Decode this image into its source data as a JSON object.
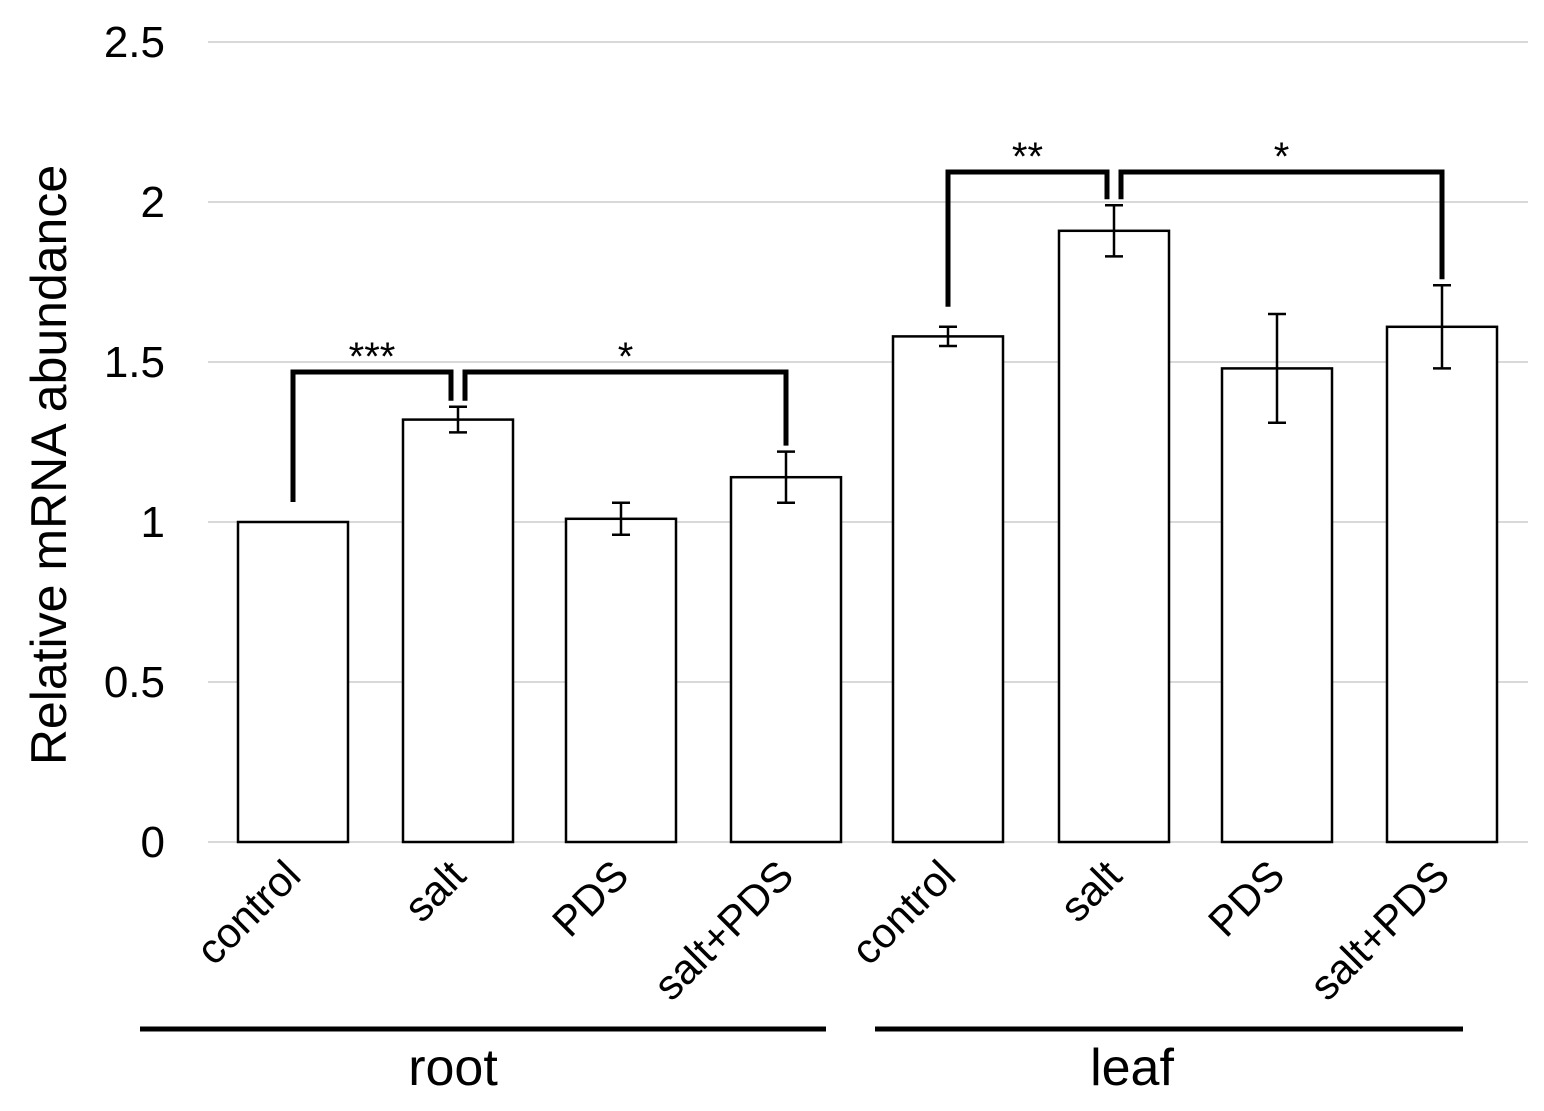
{
  "chart_data": {
    "type": "bar",
    "title": "",
    "ylabel": "Relative mRNA abundance",
    "xlabel": "",
    "ylim": [
      0,
      2.5
    ],
    "yticks": [
      "0",
      "0.5",
      "1",
      "1.5",
      "2",
      "2.5"
    ],
    "grid": true,
    "categories": [
      "control",
      "salt",
      "PDS",
      "salt+PDS",
      "control",
      "salt",
      "PDS",
      "salt+PDS"
    ],
    "values": [
      1.0,
      1.32,
      1.01,
      1.14,
      1.58,
      1.91,
      1.48,
      1.61
    ],
    "errors": [
      0.0,
      0.04,
      0.05,
      0.08,
      0.03,
      0.08,
      0.17,
      0.13
    ],
    "groups": [
      {
        "label": "root",
        "members": [
          0,
          1,
          2,
          3
        ]
      },
      {
        "label": "leaf",
        "members": [
          4,
          5,
          6,
          7
        ]
      }
    ],
    "significance": [
      {
        "from": 0,
        "to": 1,
        "label": "***"
      },
      {
        "from": 1,
        "to": 3,
        "label": "*"
      },
      {
        "from": 4,
        "to": 5,
        "label": "**"
      },
      {
        "from": 5,
        "to": 7,
        "label": "*"
      }
    ],
    "colors": {
      "bar_fill": "#ffffff",
      "bar_stroke": "#000000",
      "grid": "#d9d9d9"
    }
  }
}
